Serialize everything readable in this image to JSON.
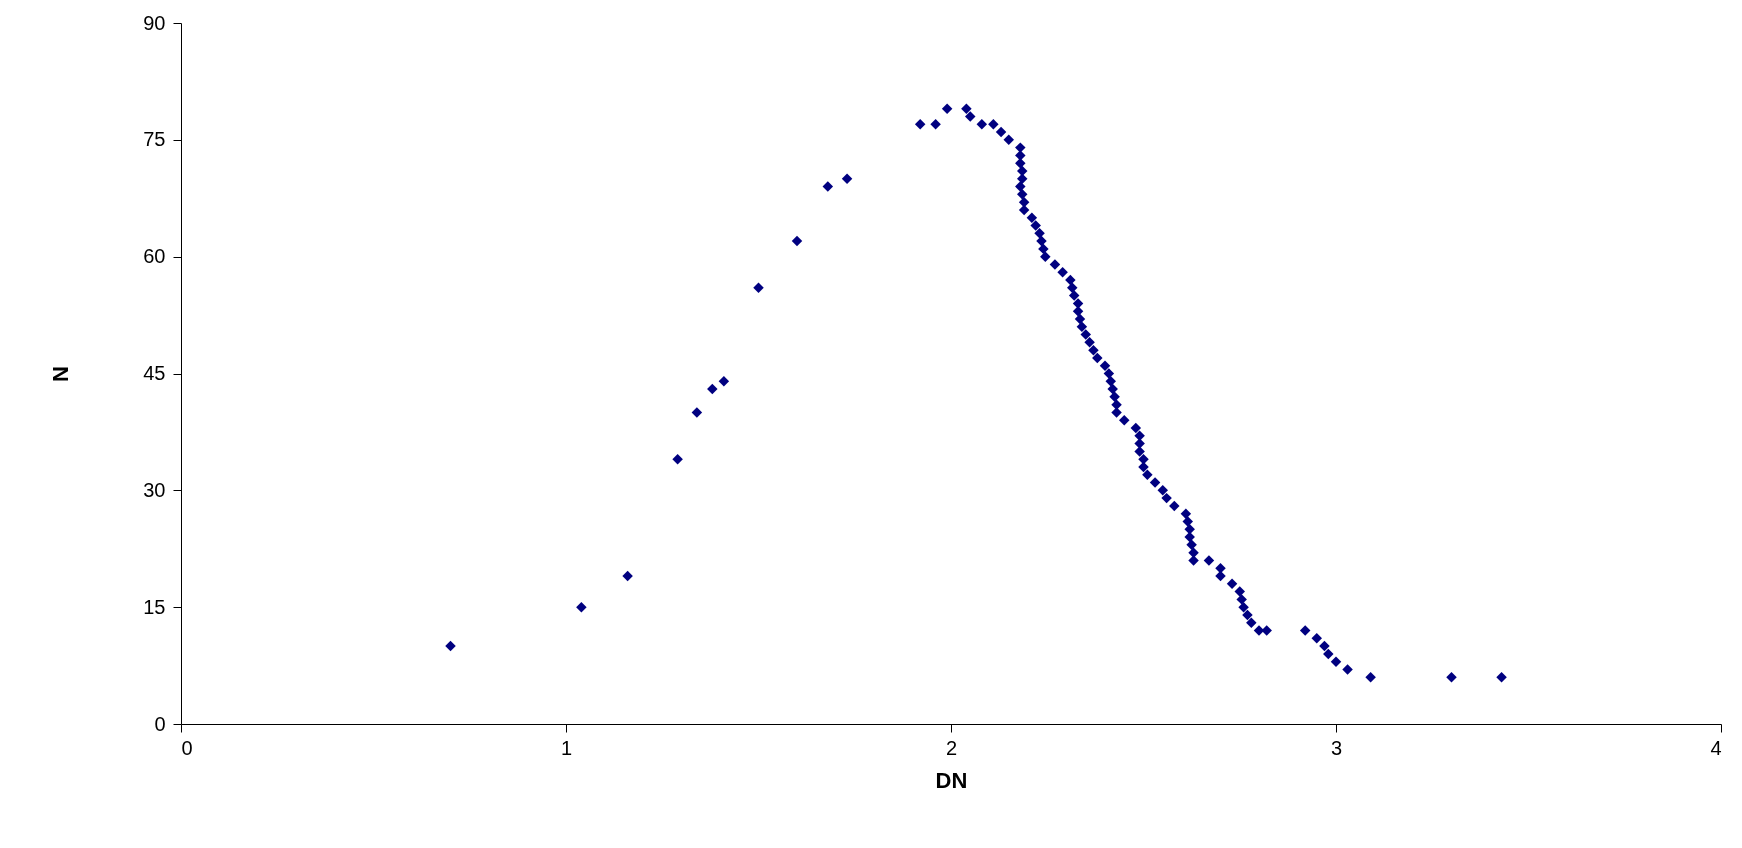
{
  "chart_data": {
    "type": "scatter",
    "xlabel": "DN",
    "ylabel": "N",
    "xlim": [
      0,
      4
    ],
    "xticks": [
      0,
      1,
      2,
      3,
      4
    ],
    "ylim": [
      0,
      90
    ],
    "yticks": [
      0,
      15,
      30,
      45,
      60,
      75,
      90
    ],
    "grid": false,
    "legend": false,
    "marker": "diamond",
    "series": [
      {
        "color": "#000080",
        "x": [
          0.7,
          1.04,
          1.16,
          1.29,
          1.34,
          1.38,
          1.41,
          1.5,
          1.6,
          1.68,
          1.73,
          1.92,
          1.96,
          1.99,
          2.04,
          2.05,
          2.08,
          2.11,
          2.13,
          2.15,
          2.18,
          2.18,
          2.18,
          2.185,
          2.185,
          2.18,
          2.185,
          2.19,
          2.19,
          2.21,
          2.22,
          2.23,
          2.235,
          2.24,
          2.245,
          2.27,
          2.29,
          2.31,
          2.315,
          2.32,
          2.33,
          2.33,
          2.335,
          2.34,
          2.35,
          2.36,
          2.37,
          2.38,
          2.4,
          2.41,
          2.415,
          2.42,
          2.425,
          2.43,
          2.43,
          2.45,
          2.48,
          2.49,
          2.49,
          2.49,
          2.5,
          2.5,
          2.51,
          2.53,
          2.55,
          2.56,
          2.58,
          2.61,
          2.615,
          2.62,
          2.62,
          2.625,
          2.63,
          2.63,
          2.67,
          2.7,
          2.7,
          2.73,
          2.75,
          2.755,
          2.76,
          2.77,
          2.78,
          2.8,
          2.82,
          2.92,
          2.95,
          2.97,
          2.98,
          3.0,
          3.03,
          3.09,
          3.3,
          3.43
        ],
        "values": [
          10,
          15,
          19,
          34,
          40,
          43,
          44,
          56,
          62,
          69,
          70,
          77,
          77,
          79,
          79,
          78,
          77,
          77,
          76,
          75,
          74,
          73,
          72,
          71,
          70,
          69,
          68,
          67,
          66,
          65,
          64,
          63,
          62,
          61,
          60,
          59,
          58,
          57,
          56,
          55,
          54,
          53,
          52,
          51,
          50,
          49,
          48,
          47,
          46,
          45,
          44,
          43,
          42,
          41,
          40,
          39,
          38,
          37,
          36,
          35,
          34,
          33,
          32,
          31,
          30,
          29,
          28,
          27,
          26,
          25,
          24,
          23,
          22,
          21,
          21,
          20,
          19,
          18,
          17,
          16,
          15,
          14,
          13,
          12,
          12,
          12,
          11,
          10,
          9,
          8,
          7,
          6,
          6,
          6
        ]
      }
    ]
  }
}
